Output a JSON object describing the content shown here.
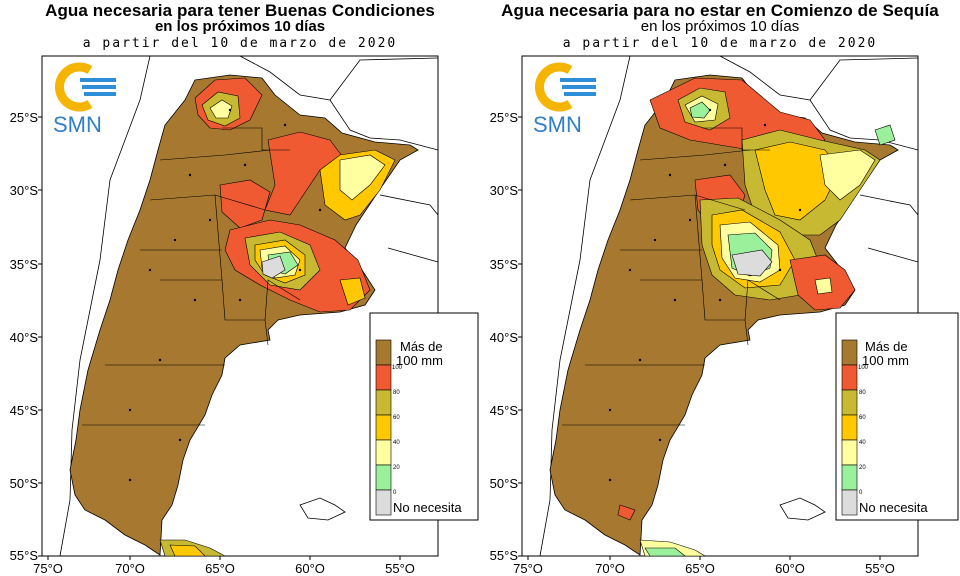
{
  "panels": [
    {
      "title": "Agua necesaria para tener Buenas Condiciones",
      "subtitle": "en los próximos 10 días",
      "date_line": "a partir del 10 de marzo de 2020",
      "logo_text": "SMN",
      "legend": {
        "top_label_1": "Más de",
        "top_label_2": "100 mm",
        "bottom_label": "No necesita",
        "ticks": [
          "100",
          "80",
          "60",
          "40",
          "20",
          "0"
        ],
        "colors": [
          "#a67830",
          "#f05a32",
          "#c8b932",
          "#ffc800",
          "#ffffa0",
          "#9bf09b",
          "#dcdcdc"
        ]
      }
    },
    {
      "title": "Agua necesaria para no estar en Comienzo de Sequía",
      "subtitle": "en los próximos 10 días",
      "date_line": "a partir del 10 de marzo de 2020",
      "logo_text": "SMN",
      "legend": {
        "top_label_1": "Más de",
        "top_label_2": "100 mm",
        "bottom_label": "No necesita",
        "ticks": [
          "100",
          "80",
          "60",
          "40",
          "20",
          "0"
        ],
        "colors": [
          "#a67830",
          "#f05a32",
          "#c8b932",
          "#ffc800",
          "#ffffa0",
          "#9bf09b",
          "#dcdcdc"
        ]
      }
    }
  ],
  "axes": {
    "lat_labels": [
      "25°S",
      "30°S",
      "35°S",
      "40°S",
      "45°S",
      "50°S",
      "55°S"
    ],
    "lon_labels": [
      "75°O",
      "70°O",
      "65°O",
      "60°O",
      "55°O"
    ]
  }
}
